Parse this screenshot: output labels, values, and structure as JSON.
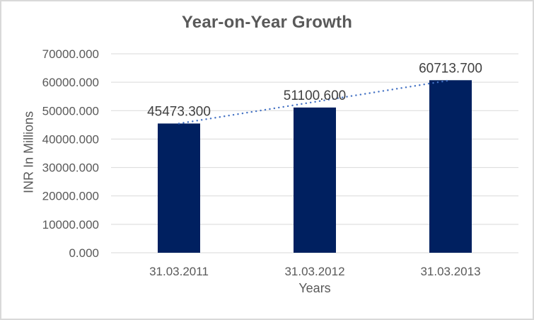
{
  "window": {
    "background": "#ffffff",
    "border_color": "#d9d9d9"
  },
  "chart_data": {
    "type": "bar",
    "title": "Year-on-Year Growth",
    "xlabel": "Years",
    "ylabel": "INR In Millions",
    "categories": [
      "31.03.2011",
      "31.03.2012",
      "31.03.2013"
    ],
    "values": [
      45473.3,
      51100.6,
      60713.7
    ],
    "data_labels": [
      "45473.300",
      "51100.600",
      "60713.700"
    ],
    "ylim": [
      0,
      70000
    ],
    "ytick_step": 10000,
    "ytick_labels": [
      "0.000",
      "10000.000",
      "20000.000",
      "30000.000",
      "40000.000",
      "50000.000",
      "60000.000",
      "70000.000"
    ],
    "grid": true,
    "legend": false,
    "trendline": {
      "type": "linear",
      "style": "dotted",
      "color": "#4472c4"
    },
    "colors": {
      "bar": "#002060",
      "gridline": "#d9d9d9",
      "axis_text": "#595959",
      "title_text": "#595959",
      "data_label_text": "#404040"
    }
  }
}
